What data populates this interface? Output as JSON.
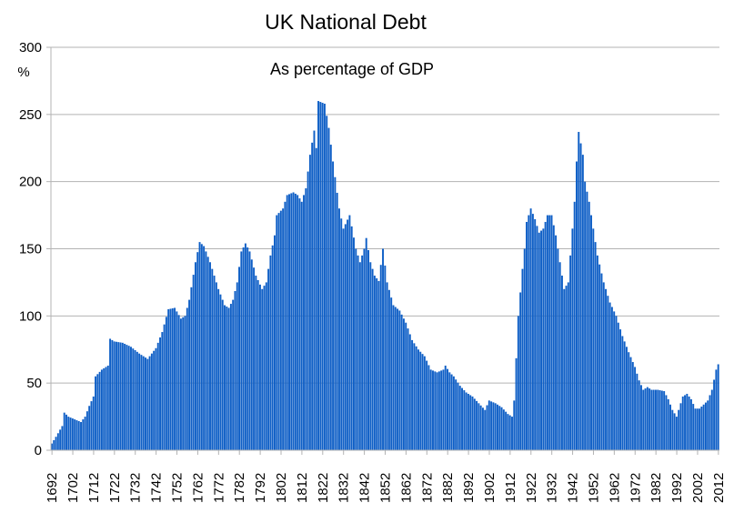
{
  "chart_data": {
    "type": "bar",
    "title": "UK National Debt",
    "subtitle": "As percentage of GDP",
    "ylabel": "%",
    "xlabel": "",
    "ylim": [
      0,
      300
    ],
    "y_ticks": [
      0,
      50,
      100,
      150,
      200,
      250,
      300
    ],
    "x_tick_labels": [
      "1692",
      "1702",
      "1712",
      "1722",
      "1732",
      "1742",
      "1752",
      "1762",
      "1772",
      "1782",
      "1792",
      "1802",
      "1812",
      "1822",
      "1832",
      "1842",
      "1852",
      "1862",
      "1872",
      "1882",
      "1892",
      "1902",
      "1912",
      "1922",
      "1932",
      "1942",
      "1952",
      "1962",
      "1972",
      "1982",
      "1992",
      "2002",
      "2012"
    ],
    "grid": true,
    "bar_color": "#0f5fc6",
    "legend": "none",
    "x_start": 1692,
    "x_end": 2012,
    "anchors": [
      [
        1692,
        5
      ],
      [
        1694,
        10
      ],
      [
        1697,
        18
      ],
      [
        1698,
        28
      ],
      [
        1700,
        25
      ],
      [
        1703,
        23
      ],
      [
        1706,
        21
      ],
      [
        1708,
        25
      ],
      [
        1710,
        33
      ],
      [
        1712,
        40
      ],
      [
        1713,
        55
      ],
      [
        1716,
        60
      ],
      [
        1719,
        63
      ],
      [
        1720,
        83
      ],
      [
        1722,
        81
      ],
      [
        1726,
        80
      ],
      [
        1730,
        77
      ],
      [
        1734,
        72
      ],
      [
        1738,
        68
      ],
      [
        1742,
        76
      ],
      [
        1745,
        88
      ],
      [
        1748,
        105
      ],
      [
        1751,
        106
      ],
      [
        1754,
        98
      ],
      [
        1756,
        100
      ],
      [
        1758,
        112
      ],
      [
        1761,
        140
      ],
      [
        1763,
        155
      ],
      [
        1765,
        152
      ],
      [
        1768,
        140
      ],
      [
        1772,
        120
      ],
      [
        1775,
        108
      ],
      [
        1777,
        106
      ],
      [
        1779,
        112
      ],
      [
        1781,
        125
      ],
      [
        1783,
        148
      ],
      [
        1785,
        154
      ],
      [
        1787,
        148
      ],
      [
        1790,
        130
      ],
      [
        1793,
        120
      ],
      [
        1795,
        125
      ],
      [
        1797,
        145
      ],
      [
        1799,
        160
      ],
      [
        1800,
        175
      ],
      [
        1803,
        180
      ],
      [
        1805,
        190
      ],
      [
        1808,
        192
      ],
      [
        1810,
        190
      ],
      [
        1812,
        185
      ],
      [
        1814,
        195
      ],
      [
        1816,
        220
      ],
      [
        1818,
        238
      ],
      [
        1819,
        225
      ],
      [
        1820,
        260
      ],
      [
        1823,
        258
      ],
      [
        1825,
        240
      ],
      [
        1827,
        215
      ],
      [
        1830,
        180
      ],
      [
        1832,
        165
      ],
      [
        1835,
        175
      ],
      [
        1838,
        150
      ],
      [
        1840,
        140
      ],
      [
        1842,
        150
      ],
      [
        1843,
        158
      ],
      [
        1845,
        140
      ],
      [
        1847,
        130
      ],
      [
        1849,
        126
      ],
      [
        1851,
        150
      ],
      [
        1853,
        125
      ],
      [
        1856,
        108
      ],
      [
        1859,
        104
      ],
      [
        1862,
        95
      ],
      [
        1865,
        82
      ],
      [
        1868,
        75
      ],
      [
        1871,
        70
      ],
      [
        1874,
        60
      ],
      [
        1877,
        58
      ],
      [
        1880,
        60
      ],
      [
        1881,
        63
      ],
      [
        1883,
        58
      ],
      [
        1885,
        55
      ],
      [
        1888,
        48
      ],
      [
        1891,
        43
      ],
      [
        1894,
        40
      ],
      [
        1897,
        35
      ],
      [
        1900,
        30
      ],
      [
        1902,
        37
      ],
      [
        1905,
        35
      ],
      [
        1908,
        32
      ],
      [
        1911,
        27
      ],
      [
        1913,
        25
      ],
      [
        1914,
        37
      ],
      [
        1916,
        100
      ],
      [
        1918,
        135
      ],
      [
        1919,
        150
      ],
      [
        1920,
        170
      ],
      [
        1922,
        180
      ],
      [
        1924,
        172
      ],
      [
        1926,
        162
      ],
      [
        1928,
        165
      ],
      [
        1930,
        175
      ],
      [
        1932,
        175
      ],
      [
        1934,
        160
      ],
      [
        1936,
        140
      ],
      [
        1938,
        120
      ],
      [
        1940,
        125
      ],
      [
        1941,
        145
      ],
      [
        1943,
        185
      ],
      [
        1944,
        215
      ],
      [
        1945,
        237
      ],
      [
        1947,
        220
      ],
      [
        1948,
        200
      ],
      [
        1950,
        185
      ],
      [
        1952,
        165
      ],
      [
        1954,
        145
      ],
      [
        1957,
        125
      ],
      [
        1960,
        110
      ],
      [
        1963,
        100
      ],
      [
        1966,
        85
      ],
      [
        1969,
        73
      ],
      [
        1972,
        62
      ],
      [
        1974,
        52
      ],
      [
        1976,
        45
      ],
      [
        1978,
        47
      ],
      [
        1980,
        45
      ],
      [
        1983,
        45
      ],
      [
        1986,
        44
      ],
      [
        1988,
        38
      ],
      [
        1990,
        30
      ],
      [
        1992,
        25
      ],
      [
        1993,
        30
      ],
      [
        1995,
        40
      ],
      [
        1997,
        42
      ],
      [
        1999,
        38
      ],
      [
        2001,
        31
      ],
      [
        2003,
        31
      ],
      [
        2005,
        34
      ],
      [
        2007,
        37
      ],
      [
        2009,
        45
      ],
      [
        2011,
        60
      ],
      [
        2012,
        64
      ]
    ]
  }
}
